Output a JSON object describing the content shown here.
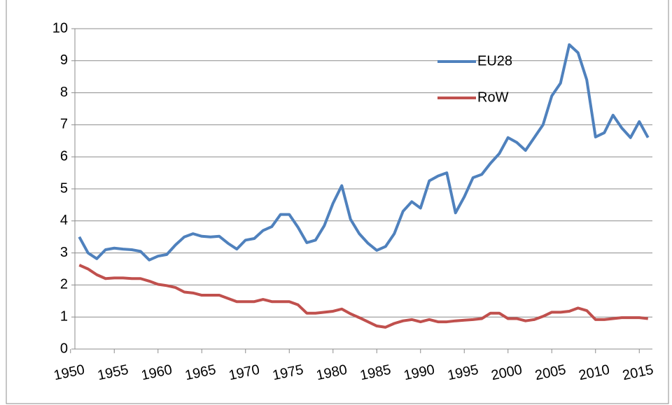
{
  "chart_data": {
    "type": "line",
    "x": [
      1951,
      1952,
      1953,
      1954,
      1955,
      1956,
      1957,
      1958,
      1959,
      1960,
      1961,
      1962,
      1963,
      1964,
      1965,
      1966,
      1967,
      1968,
      1969,
      1970,
      1971,
      1972,
      1973,
      1974,
      1975,
      1976,
      1977,
      1978,
      1979,
      1980,
      1981,
      1982,
      1983,
      1984,
      1985,
      1986,
      1987,
      1988,
      1989,
      1990,
      1991,
      1992,
      1993,
      1994,
      1995,
      1996,
      1997,
      1998,
      1999,
      2000,
      2001,
      2002,
      2003,
      2004,
      2005,
      2006,
      2007,
      2008,
      2009,
      2010,
      2011,
      2012,
      2013,
      2014,
      2015,
      2016
    ],
    "series": [
      {
        "name": "EU28",
        "color": "#4f81bd",
        "values": [
          3.5,
          3.0,
          2.82,
          3.1,
          3.15,
          3.12,
          3.1,
          3.05,
          2.78,
          2.9,
          2.95,
          3.25,
          3.5,
          3.6,
          3.52,
          3.5,
          3.52,
          3.3,
          3.12,
          3.4,
          3.45,
          3.7,
          3.82,
          4.2,
          4.2,
          3.8,
          3.32,
          3.4,
          3.85,
          4.55,
          5.1,
          4.05,
          3.6,
          3.3,
          3.08,
          3.2,
          3.6,
          4.3,
          4.6,
          4.4,
          5.25,
          5.4,
          5.5,
          4.25,
          4.75,
          5.35,
          5.45,
          5.8,
          6.1,
          6.6,
          6.45,
          6.2,
          6.6,
          7.0,
          7.9,
          8.3,
          9.5,
          9.25,
          8.4,
          6.62,
          6.75,
          7.3,
          6.9,
          6.6,
          7.1,
          6.6
        ]
      },
      {
        "name": "RoW",
        "color": "#c0504d",
        "values": [
          2.62,
          2.5,
          2.32,
          2.2,
          2.22,
          2.22,
          2.2,
          2.2,
          2.12,
          2.02,
          1.98,
          1.92,
          1.78,
          1.75,
          1.68,
          1.68,
          1.68,
          1.58,
          1.48,
          1.48,
          1.48,
          1.55,
          1.48,
          1.48,
          1.48,
          1.38,
          1.12,
          1.12,
          1.15,
          1.18,
          1.25,
          1.1,
          0.98,
          0.85,
          0.72,
          0.68,
          0.8,
          0.88,
          0.92,
          0.85,
          0.92,
          0.85,
          0.85,
          0.88,
          0.9,
          0.92,
          0.95,
          1.12,
          1.12,
          0.95,
          0.95,
          0.88,
          0.92,
          1.02,
          1.15,
          1.15,
          1.18,
          1.28,
          1.2,
          0.92,
          0.92,
          0.95,
          0.98,
          0.98,
          0.98,
          0.95
        ]
      }
    ],
    "xlim": [
      1950.5,
      2016.5
    ],
    "xticks": [
      1950,
      1955,
      1960,
      1965,
      1970,
      1975,
      1980,
      1985,
      1990,
      1995,
      2000,
      2005,
      2010,
      2015
    ],
    "ylim": [
      0,
      10
    ],
    "yticks": [
      0,
      1,
      2,
      3,
      4,
      5,
      6,
      7,
      8,
      9,
      10
    ],
    "grid": true,
    "legend": "upper right"
  }
}
